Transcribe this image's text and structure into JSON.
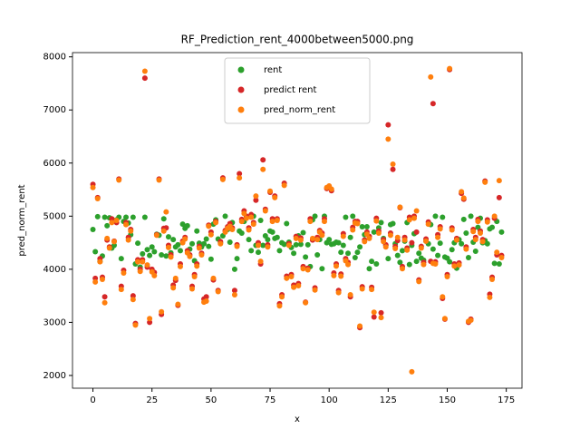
{
  "chart_data": {
    "type": "scatter",
    "title": "RF_Prediction_rent_4000between5000.png",
    "xlabel": "x",
    "ylabel": "pred_norm_rent",
    "xlim": [
      -8.65,
      181.65
    ],
    "ylim": [
      1760,
      8080
    ],
    "xticks": [
      0,
      25,
      50,
      75,
      100,
      125,
      150,
      175
    ],
    "yticks": [
      2000,
      3000,
      4000,
      5000,
      6000,
      7000,
      8000
    ],
    "legend": "upper center",
    "x": [
      0,
      1,
      2,
      3,
      4,
      5,
      6,
      7,
      8,
      9,
      10,
      11,
      12,
      13,
      14,
      15,
      16,
      17,
      18,
      19,
      20,
      21,
      22,
      23,
      24,
      25,
      26,
      27,
      28,
      29,
      30,
      31,
      32,
      33,
      34,
      35,
      36,
      37,
      38,
      39,
      40,
      41,
      42,
      43,
      44,
      45,
      46,
      47,
      48,
      49,
      50,
      51,
      52,
      53,
      54,
      55,
      56,
      57,
      58,
      59,
      60,
      61,
      62,
      63,
      64,
      65,
      66,
      67,
      68,
      69,
      70,
      71,
      72,
      73,
      74,
      75,
      76,
      77,
      78,
      79,
      80,
      81,
      82,
      83,
      84,
      85,
      86,
      87,
      88,
      89,
      90,
      91,
      92,
      93,
      94,
      95,
      96,
      97,
      98,
      99,
      100,
      101,
      102,
      103,
      104,
      105,
      106,
      107,
      108,
      109,
      110,
      111,
      112,
      113,
      114,
      115,
      116,
      117,
      118,
      119,
      120,
      121,
      122,
      123,
      124,
      125,
      126,
      127,
      128,
      129,
      130,
      131,
      132,
      133,
      134,
      135,
      136,
      137,
      138,
      139,
      140,
      141,
      142,
      143,
      144,
      145,
      146,
      147,
      148,
      149,
      150,
      151,
      152,
      153,
      154,
      155,
      156,
      157,
      158,
      159,
      160,
      161,
      162,
      163,
      164,
      165,
      166,
      167,
      168,
      169,
      170,
      171,
      172,
      173
    ],
    "series": [
      {
        "name": "rent",
        "color": "#2ca02c",
        "values": [
          4750,
          4330,
          4990,
          4150,
          4250,
          4980,
          4820,
          4970,
          4400,
          4450,
          4930,
          4980,
          4200,
          4900,
          4980,
          4870,
          4650,
          4980,
          4100,
          4490,
          4040,
          4290,
          4980,
          4370,
          4260,
          4420,
          4330,
          4660,
          4640,
          4270,
          4950,
          4250,
          4610,
          4310,
          4560,
          4420,
          4460,
          4350,
          4850,
          4770,
          4820,
          4380,
          4480,
          4160,
          4720,
          4490,
          4420,
          4480,
          4570,
          4430,
          4190,
          4850,
          4930,
          4570,
          4500,
          4630,
          5000,
          4750,
          4510,
          4880,
          4000,
          4200,
          4720,
          4680,
          4900,
          4990,
          4560,
          4350,
          5000,
          4450,
          4320,
          4920,
          4450,
          4630,
          4560,
          4720,
          4700,
          4580,
          4600,
          4350,
          4500,
          4470,
          4860,
          4510,
          4410,
          4300,
          4460,
          4630,
          4470,
          4690,
          4230,
          4460,
          4050,
          4930,
          5000,
          4270,
          4560,
          4010,
          5000,
          4500,
          4560,
          4470,
          4480,
          4510,
          4500,
          4320,
          4450,
          4980,
          4300,
          4600,
          5000,
          4220,
          4320,
          4420,
          4800,
          4650,
          4800,
          4010,
          4150,
          4700,
          4100,
          4780,
          4880,
          4580,
          4450,
          4200,
          4840,
          4860,
          4480,
          4260,
          4130,
          4350,
          4530,
          4880,
          4090,
          4450,
          4670,
          4150,
          4300,
          4210,
          4170,
          4530,
          4480,
          4840,
          4380,
          5000,
          4260,
          4490,
          4980,
          4230,
          4210,
          4140,
          4370,
          4500,
          4020,
          4560,
          4480,
          4940,
          4680,
          4220,
          5000,
          4510,
          4340,
          4790,
          4960,
          4500,
          4540,
          4480,
          4760,
          4790,
          4110,
          4900,
          4100,
          4700
        ]
      },
      {
        "name": "predict rent",
        "color": "#d62728",
        "values": [
          5600,
          3830,
          5350,
          4200,
          3850,
          3480,
          4550,
          4420,
          4950,
          4530,
          4880,
          5700,
          3680,
          3980,
          4880,
          4600,
          4750,
          3500,
          2980,
          4180,
          4000,
          4180,
          7600,
          4040,
          3000,
          4000,
          3940,
          4650,
          5700,
          3150,
          4770,
          4780,
          4450,
          4270,
          3700,
          3790,
          3320,
          4100,
          4530,
          4600,
          4350,
          4270,
          3680,
          3900,
          4100,
          4430,
          4300,
          3440,
          3480,
          4830,
          4700,
          3800,
          4900,
          3600,
          4520,
          5720,
          4730,
          4800,
          4860,
          4780,
          3600,
          4460,
          5800,
          4940,
          5100,
          5000,
          4780,
          5030,
          4880,
          5300,
          4500,
          4100,
          6060,
          5130,
          4460,
          5450,
          4950,
          5380,
          4950,
          3350,
          3520,
          5620,
          3870,
          4480,
          3900,
          3700,
          4620,
          3730,
          4590,
          4050,
          3380,
          4020,
          4950,
          4550,
          3650,
          4600,
          4730,
          4680,
          4950,
          5520,
          5550,
          5480,
          3930,
          4100,
          3600,
          3910,
          4670,
          4200,
          4130,
          3480,
          4790,
          4900,
          4900,
          2900,
          3670,
          4550,
          4700,
          4620,
          3660,
          3100,
          4960,
          4720,
          3180,
          4560,
          4460,
          6720,
          4680,
          5880,
          4430,
          4540,
          5160,
          4050,
          4600,
          4400,
          4980,
          4500,
          5000,
          4700,
          3800,
          4430,
          4130,
          4570,
          4890,
          4150,
          7120,
          4140,
          4650,
          4800,
          3450,
          3060,
          3900,
          7760,
          4780,
          4100,
          4580,
          4120,
          5430,
          5320,
          4420,
          3000,
          3060,
          4750,
          4600,
          4940,
          4720,
          4560,
          5660,
          4930,
          3530,
          3850,
          4960,
          4270,
          5350,
          4260
        ]
      },
      {
        "name": "pred_norm_rent",
        "color": "#ff7f0e",
        "values": [
          5540,
          3760,
          5330,
          4140,
          3810,
          3370,
          4580,
          4400,
          4880,
          4520,
          4920,
          5680,
          3620,
          3930,
          4840,
          4550,
          4720,
          3430,
          2950,
          4140,
          3960,
          4140,
          7730,
          4080,
          3070,
          3950,
          3880,
          4640,
          5680,
          3200,
          4720,
          5080,
          4410,
          4230,
          3650,
          3830,
          3340,
          4050,
          4500,
          4570,
          4310,
          4240,
          3630,
          3860,
          4060,
          4400,
          4270,
          3380,
          3400,
          4810,
          4650,
          3830,
          4880,
          3580,
          4480,
          5690,
          4700,
          4770,
          4810,
          4750,
          3520,
          4430,
          5720,
          4900,
          5050,
          4960,
          4740,
          4980,
          4850,
          5380,
          4450,
          4150,
          5880,
          5100,
          4420,
          5470,
          4900,
          5350,
          4920,
          3310,
          3480,
          5580,
          3830,
          4450,
          3860,
          3660,
          4580,
          3690,
          4550,
          4010,
          3370,
          3990,
          4900,
          4580,
          3610,
          4560,
          4700,
          4640,
          4900,
          5540,
          5570,
          5510,
          3880,
          4060,
          3560,
          3870,
          4620,
          4160,
          4090,
          3520,
          4740,
          4870,
          4860,
          2930,
          3630,
          4520,
          4660,
          4580,
          3620,
          3190,
          4910,
          4680,
          3090,
          4520,
          4420,
          6450,
          4640,
          5980,
          4390,
          4600,
          5170,
          4010,
          4550,
          4360,
          4930,
          2070,
          4960,
          5100,
          3770,
          4400,
          4090,
          4530,
          4850,
          7620,
          4110,
          4100,
          4600,
          4760,
          3480,
          3070,
          3860,
          7780,
          4740,
          4060,
          4550,
          4080,
          5460,
          5340,
          4380,
          3020,
          3040,
          4710,
          4560,
          4900,
          4680,
          4520,
          5640,
          4890,
          3470,
          3810,
          5000,
          4320,
          5670,
          4220
        ]
      }
    ]
  }
}
